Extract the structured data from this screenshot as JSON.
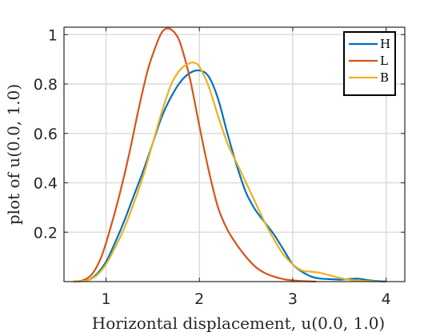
{
  "chart_data": {
    "type": "line",
    "title": "",
    "xlabel": "Horizontal displacement, u(0.0, 1.0)",
    "ylabel": "plot of u(0.0, 1.0)",
    "xlim": [
      0.55,
      4.2
    ],
    "ylim": [
      0,
      1.03
    ],
    "xticks": [
      1,
      2,
      3,
      4
    ],
    "yticks": [
      0.2,
      0.4,
      0.6,
      0.8,
      1
    ],
    "xtick_labels": [
      "1",
      "2",
      "3",
      "4"
    ],
    "ytick_labels": [
      "0.2",
      "0.4",
      "0.6",
      "0.8",
      "1"
    ],
    "grid": true,
    "legend_position": "top-right",
    "series": [
      {
        "name": "H",
        "color": "#0072BD",
        "x": [
          0.65,
          0.8,
          0.9,
          1.0,
          1.1,
          1.2,
          1.3,
          1.4,
          1.5,
          1.6,
          1.7,
          1.8,
          1.9,
          2.0,
          2.1,
          2.2,
          2.3,
          2.4,
          2.5,
          2.6,
          2.7,
          2.8,
          2.9,
          3.0,
          3.1,
          3.2,
          3.3,
          3.4,
          3.5,
          3.6,
          3.7,
          3.8,
          3.9,
          4.0
        ],
        "y": [
          0.0,
          0.005,
          0.03,
          0.08,
          0.16,
          0.25,
          0.35,
          0.45,
          0.56,
          0.67,
          0.75,
          0.81,
          0.845,
          0.855,
          0.83,
          0.74,
          0.6,
          0.47,
          0.36,
          0.29,
          0.24,
          0.19,
          0.13,
          0.07,
          0.04,
          0.02,
          0.012,
          0.01,
          0.008,
          0.01,
          0.012,
          0.006,
          0.002,
          0.0
        ]
      },
      {
        "name": "L",
        "color": "#D95319",
        "x": [
          0.65,
          0.75,
          0.85,
          0.95,
          1.05,
          1.15,
          1.25,
          1.35,
          1.45,
          1.55,
          1.6,
          1.65,
          1.7,
          1.75,
          1.8,
          1.9,
          2.0,
          2.1,
          2.2,
          2.3,
          2.4,
          2.5,
          2.6,
          2.7,
          2.8,
          2.9,
          3.0,
          3.1,
          3.2,
          3.25
        ],
        "y": [
          0.0,
          0.005,
          0.03,
          0.1,
          0.22,
          0.36,
          0.52,
          0.7,
          0.86,
          0.97,
          1.01,
          1.025,
          1.02,
          1.0,
          0.96,
          0.82,
          0.63,
          0.45,
          0.3,
          0.21,
          0.15,
          0.1,
          0.06,
          0.035,
          0.02,
          0.01,
          0.005,
          0.002,
          0.001,
          0.0
        ]
      },
      {
        "name": "B",
        "color": "#EDB120",
        "x": [
          0.65,
          0.8,
          0.9,
          1.0,
          1.1,
          1.2,
          1.3,
          1.4,
          1.5,
          1.6,
          1.7,
          1.8,
          1.9,
          1.95,
          2.0,
          2.1,
          2.2,
          2.3,
          2.4,
          2.5,
          2.6,
          2.7,
          2.8,
          2.9,
          3.0,
          3.1,
          3.2,
          3.3,
          3.4,
          3.5,
          3.6,
          3.7,
          3.8,
          3.9
        ],
        "y": [
          0.0,
          0.005,
          0.025,
          0.07,
          0.14,
          0.22,
          0.32,
          0.43,
          0.56,
          0.69,
          0.8,
          0.86,
          0.885,
          0.885,
          0.87,
          0.79,
          0.67,
          0.56,
          0.48,
          0.4,
          0.32,
          0.24,
          0.17,
          0.11,
          0.07,
          0.045,
          0.04,
          0.035,
          0.025,
          0.015,
          0.008,
          0.004,
          0.002,
          0.0
        ]
      }
    ]
  }
}
